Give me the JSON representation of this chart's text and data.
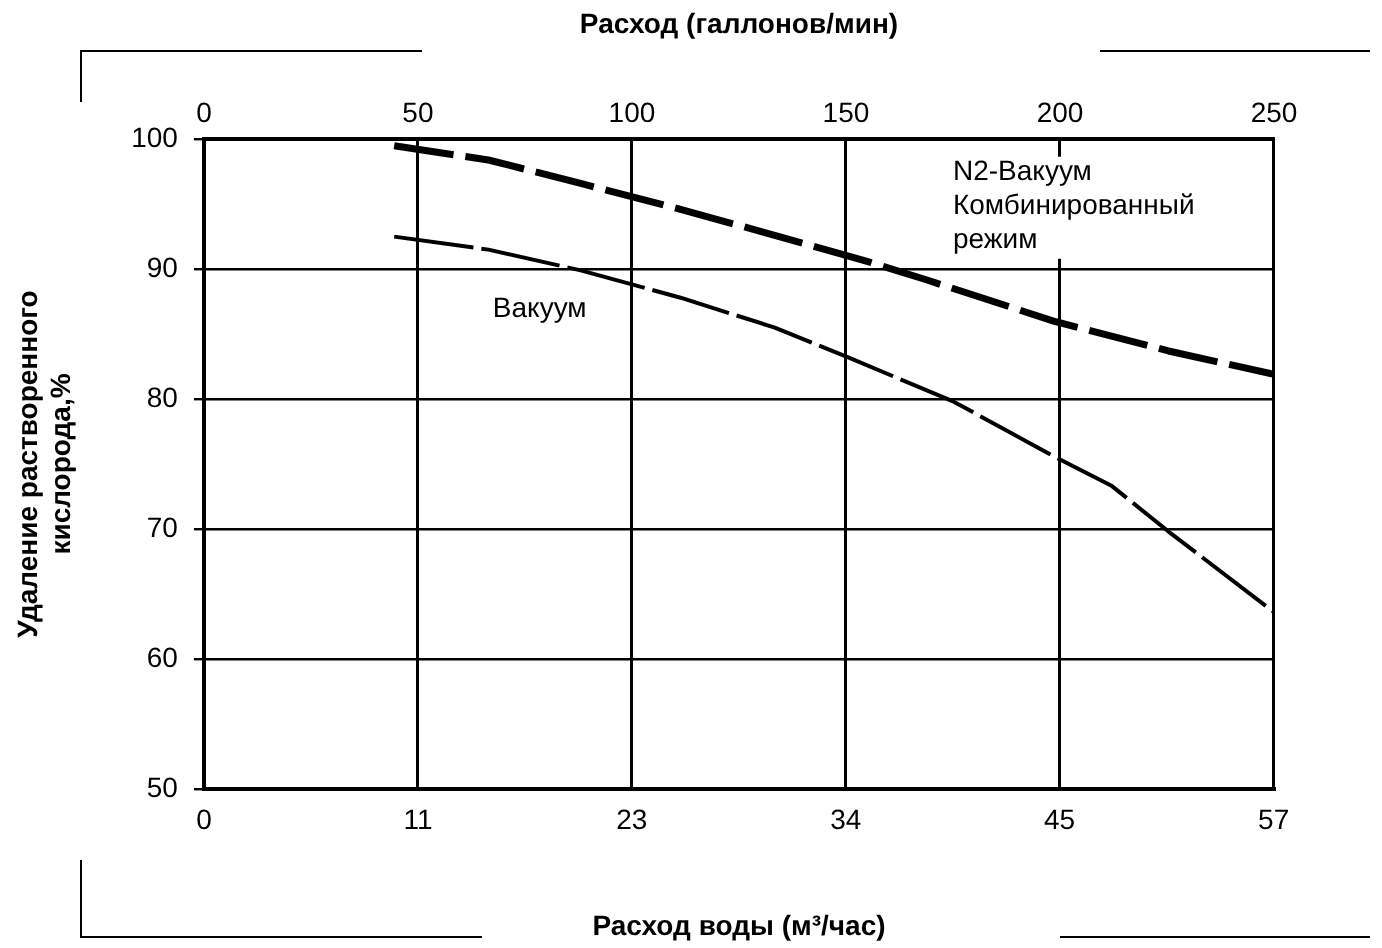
{
  "chart_data": {
    "type": "line",
    "xlabel": "Расход воды (м³/час)",
    "x2label": "Расход (галлонов/мин)",
    "ylabel": "Удаление растворенного кислорода,%",
    "xlim": [
      0,
      56.8
    ],
    "xticks": [
      0,
      {
        "value": 11.36,
        "label": "11"
      },
      {
        "value": 22.71,
        "label": "23"
      },
      {
        "value": 34.07,
        "label": "34"
      },
      {
        "value": 45.42,
        "label": "45"
      },
      {
        "value": 56.78,
        "label": "57"
      }
    ],
    "x2lim": [
      0,
      250
    ],
    "x2ticks": [
      0,
      50,
      100,
      150,
      200,
      250
    ],
    "ylim": [
      50,
      100
    ],
    "yticks": [
      50,
      60,
      70,
      80,
      90,
      100
    ],
    "grid": true,
    "legend": false,
    "marker": "none",
    "line_style": "dashed",
    "series": [
      {
        "name": "N2-Вакуум Комбинированный режим",
        "color": "#000000",
        "x": [
          10.1,
          15.1,
          20.0,
          25.3,
          30.3,
          35.2,
          38.3,
          45.1,
          51.2,
          56.8
        ],
        "values": [
          99.5,
          98.4,
          96.6,
          94.6,
          92.6,
          90.6,
          89.2,
          86.0,
          83.7,
          81.9
        ]
      },
      {
        "name": "Вакуум",
        "color": "#000000",
        "x": [
          10.1,
          15.1,
          20.0,
          25.3,
          30.3,
          34.2,
          39.8,
          45.1,
          48.2,
          51.2,
          56.8
        ],
        "values": [
          92.5,
          91.5,
          89.9,
          87.8,
          85.5,
          83.2,
          79.8,
          75.6,
          73.3,
          69.8,
          63.6
        ]
      }
    ]
  }
}
